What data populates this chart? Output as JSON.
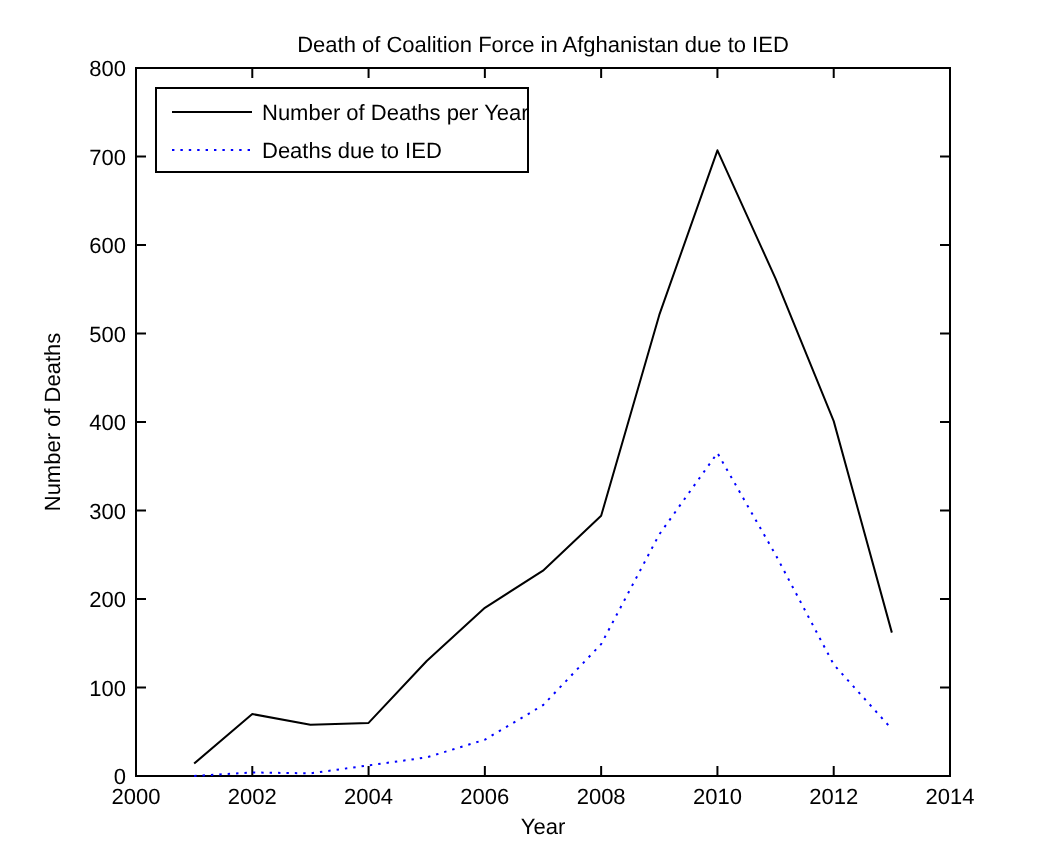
{
  "chart_data": {
    "type": "line",
    "title": "Death of Coalition Force in Afghanistan due to IED",
    "xlabel": "Year",
    "ylabel": "Number of Deaths",
    "x": [
      2001,
      2002,
      2003,
      2004,
      2005,
      2006,
      2007,
      2008,
      2009,
      2010,
      2011,
      2012,
      2013
    ],
    "series": [
      {
        "name": "Number of Deaths per Year",
        "color": "#000000",
        "line_style": "solid",
        "values": [
          14,
          70,
          58,
          60,
          130,
          190,
          232,
          294,
          521,
          707,
          562,
          401,
          162
        ]
      },
      {
        "name": "Deaths due to IED",
        "color": "#0000ff",
        "line_style": "dotted",
        "values": [
          0,
          4,
          3,
          12,
          21,
          41,
          80,
          149,
          273,
          365,
          250,
          126,
          53
        ]
      }
    ],
    "xlim": [
      2000,
      2014
    ],
    "xticks": [
      2000,
      2002,
      2004,
      2006,
      2008,
      2010,
      2012,
      2014
    ],
    "ylim": [
      0,
      800
    ],
    "yticks": [
      0,
      100,
      200,
      300,
      400,
      500,
      600,
      700,
      800
    ],
    "grid": false,
    "legend": "top left",
    "marker": "none"
  }
}
